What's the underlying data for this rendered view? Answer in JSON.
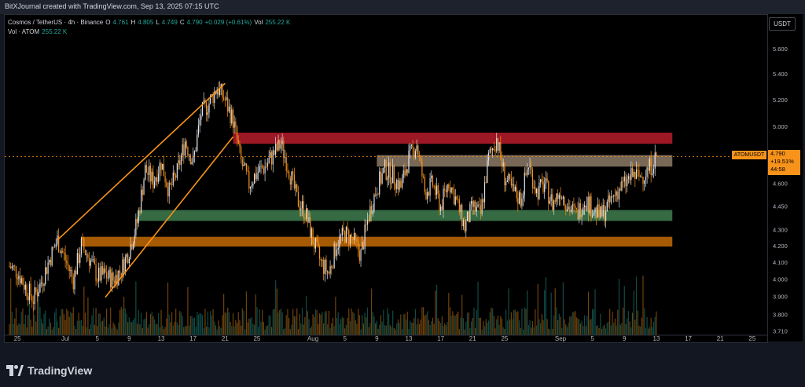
{
  "header": {
    "attribution": "BitXJournal created with TradingView.com, Sep 13, 2025 07:15 UTC"
  },
  "legend": {
    "symbol": "Cosmos / TetherUS · 4h · Binance",
    "o_label": "O",
    "o": "4.761",
    "h_label": "H",
    "h": "4.805",
    "l_label": "L",
    "l": "4.749",
    "c_label": "C",
    "c": "4.790",
    "change": "+0.029 (+0.61%)",
    "vol_label": "Vol",
    "vol": "255.22 K",
    "vol_series": "Vol · ATOM",
    "vol_value": "255.22 K"
  },
  "price_scale": {
    "currency_button": "USDT"
  },
  "last_price": {
    "symbol": "ATOMUSDT",
    "price": "4.790",
    "change_pct": "+19.51%",
    "countdown": "44:58"
  },
  "footer": {
    "brand": "TradingView"
  },
  "colors": {
    "up": "#26a69a",
    "down": "#f7931a",
    "bg": "#000000",
    "resistance_zone": "#b71c2c",
    "upper_zone": "#8d7a66",
    "support_zone": "#3e7d4e",
    "lower_zone": "#c46a05",
    "channel": "#f7931a"
  },
  "icons": {
    "logo": "tradingview-logo-icon"
  },
  "chart_data": {
    "type": "candlestick",
    "timeframe": "4h",
    "y_scale": "log",
    "ylim": [
      3.69,
      5.85
    ],
    "y_ticks": [
      5.6,
      5.4,
      5.2,
      5.0,
      4.8,
      4.6,
      4.45,
      4.3,
      4.2,
      4.1,
      4.0,
      3.9,
      3.8,
      3.71
    ],
    "y_tick_labels": [
      "5.600",
      "5.400",
      "5.200",
      "5.000",
      "4.800",
      "4.600",
      "4.450",
      "4.300",
      "4.200",
      "4.100",
      "4.000",
      "3.900",
      "3.800",
      "3.710"
    ],
    "x_range": [
      "2025-06-24",
      "2025-09-26"
    ],
    "x_ticks": [
      {
        "date": "2025-06-25",
        "label": "25"
      },
      {
        "date": "2025-07-01",
        "label": "Jul"
      },
      {
        "date": "2025-07-05",
        "label": "5"
      },
      {
        "date": "2025-07-09",
        "label": "9"
      },
      {
        "date": "2025-07-13",
        "label": "13"
      },
      {
        "date": "2025-07-17",
        "label": "17"
      },
      {
        "date": "2025-07-21",
        "label": "21"
      },
      {
        "date": "2025-07-25",
        "label": "25"
      },
      {
        "date": "2025-08-01",
        "label": "Aug"
      },
      {
        "date": "2025-08-05",
        "label": "5"
      },
      {
        "date": "2025-08-09",
        "label": "9"
      },
      {
        "date": "2025-08-13",
        "label": "13"
      },
      {
        "date": "2025-08-17",
        "label": "17"
      },
      {
        "date": "2025-08-21",
        "label": "21"
      },
      {
        "date": "2025-08-25",
        "label": "25"
      },
      {
        "date": "2025-09-01",
        "label": "Sep"
      },
      {
        "date": "2025-09-05",
        "label": "5"
      },
      {
        "date": "2025-09-09",
        "label": "9"
      },
      {
        "date": "2025-09-13",
        "label": "13"
      },
      {
        "date": "2025-09-17",
        "label": "17"
      },
      {
        "date": "2025-09-21",
        "label": "21"
      },
      {
        "date": "2025-09-25",
        "label": "25"
      }
    ],
    "price_path": [
      [
        "2025-06-24",
        4.08
      ],
      [
        "2025-06-25",
        4.05
      ],
      [
        "2025-06-26",
        3.96
      ],
      [
        "2025-06-27",
        3.89
      ],
      [
        "2025-06-28",
        3.99
      ],
      [
        "2025-06-29",
        4.12
      ],
      [
        "2025-06-30",
        4.24
      ],
      [
        "2025-07-01",
        4.12
      ],
      [
        "2025-07-02",
        4.0
      ],
      [
        "2025-07-03",
        4.21
      ],
      [
        "2025-07-04",
        4.13
      ],
      [
        "2025-07-05",
        4.02
      ],
      [
        "2025-07-06",
        4.03
      ],
      [
        "2025-07-07",
        4.0
      ],
      [
        "2025-07-08",
        4.06
      ],
      [
        "2025-07-09",
        4.18
      ],
      [
        "2025-07-10",
        4.35
      ],
      [
        "2025-07-11",
        4.7
      ],
      [
        "2025-07-12",
        4.62
      ],
      [
        "2025-07-13",
        4.75
      ],
      [
        "2025-07-14",
        4.55
      ],
      [
        "2025-07-15",
        4.68
      ],
      [
        "2025-07-16",
        4.9
      ],
      [
        "2025-07-17",
        4.75
      ],
      [
        "2025-07-18",
        5.1
      ],
      [
        "2025-07-19",
        5.18
      ],
      [
        "2025-07-20",
        5.3
      ],
      [
        "2025-07-21",
        5.2
      ],
      [
        "2025-07-22",
        5.05
      ],
      [
        "2025-07-23",
        4.75
      ],
      [
        "2025-07-24",
        4.6
      ],
      [
        "2025-07-25",
        4.68
      ],
      [
        "2025-07-26",
        4.72
      ],
      [
        "2025-07-27",
        4.8
      ],
      [
        "2025-07-28",
        4.88
      ],
      [
        "2025-07-29",
        4.7
      ],
      [
        "2025-07-30",
        4.5
      ],
      [
        "2025-07-31",
        4.42
      ],
      [
        "2025-08-01",
        4.24
      ],
      [
        "2025-08-02",
        4.1
      ],
      [
        "2025-08-03",
        4.04
      ],
      [
        "2025-08-04",
        4.22
      ],
      [
        "2025-08-05",
        4.28
      ],
      [
        "2025-08-06",
        4.24
      ],
      [
        "2025-08-07",
        4.15
      ],
      [
        "2025-08-08",
        4.4
      ],
      [
        "2025-08-09",
        4.58
      ],
      [
        "2025-08-10",
        4.7
      ],
      [
        "2025-08-11",
        4.66
      ],
      [
        "2025-08-12",
        4.58
      ],
      [
        "2025-08-13",
        4.78
      ],
      [
        "2025-08-14",
        4.88
      ],
      [
        "2025-08-15",
        4.55
      ],
      [
        "2025-08-16",
        4.6
      ],
      [
        "2025-08-17",
        4.45
      ],
      [
        "2025-08-18",
        4.62
      ],
      [
        "2025-08-19",
        4.48
      ],
      [
        "2025-08-20",
        4.32
      ],
      [
        "2025-08-21",
        4.45
      ],
      [
        "2025-08-22",
        4.4
      ],
      [
        "2025-08-23",
        4.78
      ],
      [
        "2025-08-24",
        4.92
      ],
      [
        "2025-08-25",
        4.65
      ],
      [
        "2025-08-26",
        4.55
      ],
      [
        "2025-08-27",
        4.5
      ],
      [
        "2025-08-28",
        4.74
      ],
      [
        "2025-08-29",
        4.55
      ],
      [
        "2025-08-30",
        4.6
      ],
      [
        "2025-08-31",
        4.47
      ],
      [
        "2025-09-01",
        4.56
      ],
      [
        "2025-09-02",
        4.45
      ],
      [
        "2025-09-03",
        4.4
      ],
      [
        "2025-09-04",
        4.5
      ],
      [
        "2025-09-05",
        4.44
      ],
      [
        "2025-09-06",
        4.39
      ],
      [
        "2025-09-07",
        4.46
      ],
      [
        "2025-09-08",
        4.55
      ],
      [
        "2025-09-09",
        4.6
      ],
      [
        "2025-09-10",
        4.66
      ],
      [
        "2025-09-11",
        4.65
      ],
      [
        "2025-09-12",
        4.7
      ],
      [
        "2025-09-13",
        4.79
      ]
    ],
    "volume_series": "ATOM",
    "volume_last": "255.22 K",
    "zones": [
      {
        "from": "2025-07-22",
        "to": "2025-09-15",
        "low": 4.88,
        "high": 4.96
      },
      {
        "from": "2025-08-09",
        "to": "2025-09-15",
        "low": 4.72,
        "high": 4.8
      },
      {
        "from": "2025-07-10",
        "to": "2025-09-15",
        "low": 4.36,
        "high": 4.43
      },
      {
        "from": "2025-07-03",
        "to": "2025-09-15",
        "low": 4.2,
        "high": 4.26
      }
    ],
    "trendlines": [
      {
        "from": [
          "2025-06-30",
          4.24
        ],
        "to": [
          "2025-07-21",
          5.33
        ]
      },
      {
        "from": [
          "2025-07-06",
          3.9
        ],
        "to": [
          "2025-07-22",
          4.93
        ]
      }
    ],
    "last_price": 4.79
  }
}
